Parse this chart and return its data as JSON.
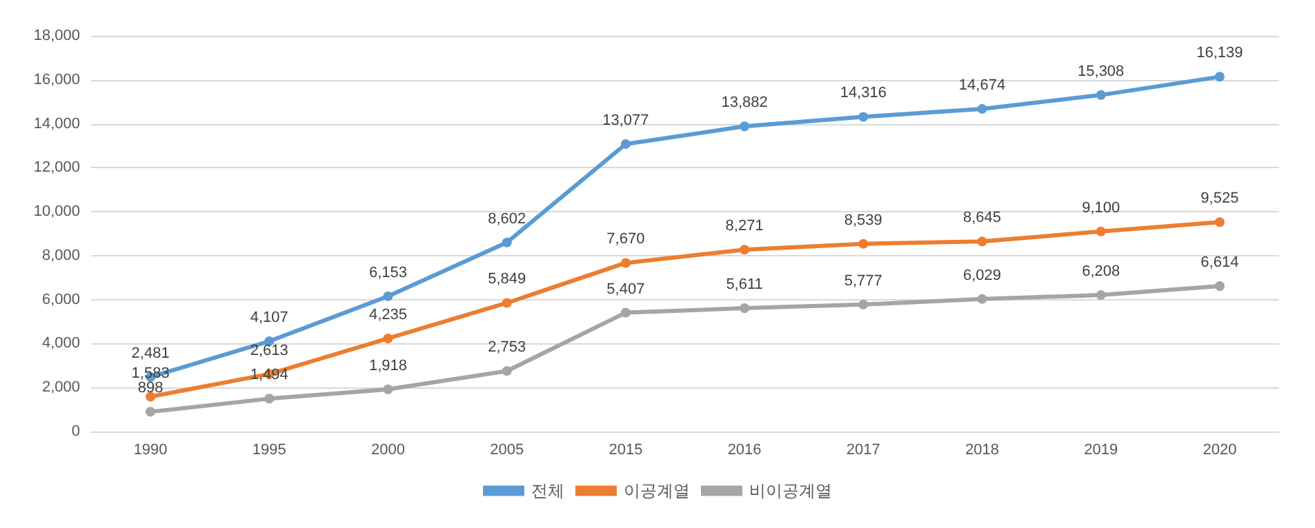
{
  "chart_data": {
    "type": "line",
    "categories": [
      "1990",
      "1995",
      "2000",
      "2005",
      "2015",
      "2016",
      "2017",
      "2018",
      "2019",
      "2020"
    ],
    "series": [
      {
        "name": "전체",
        "color": "#5b9bd5",
        "values": [
          2481,
          4107,
          6153,
          8602,
          13077,
          13882,
          14316,
          14674,
          15308,
          16139
        ],
        "value_labels": [
          "2,481",
          "4,107",
          "6,153",
          "8,602",
          "13,077",
          "13,882",
          "14,316",
          "14,674",
          "15,308",
          "16,139"
        ]
      },
      {
        "name": "이공계열",
        "color": "#ed7d31",
        "values": [
          1583,
          2613,
          4235,
          5849,
          7670,
          8271,
          8539,
          8645,
          9100,
          9525
        ],
        "value_labels": [
          "1,583",
          "2,613",
          "4,235",
          "5,849",
          "7,670",
          "8,271",
          "8,539",
          "8,645",
          "9,100",
          "9,525"
        ]
      },
      {
        "name": "비이공계열",
        "color": "#a5a5a5",
        "values": [
          898,
          1494,
          1918,
          2753,
          5407,
          5611,
          5777,
          6029,
          6208,
          6614
        ],
        "value_labels": [
          "898",
          "1,494",
          "1,918",
          "2,753",
          "5,407",
          "5,611",
          "5,777",
          "6,029",
          "6,208",
          "6,614"
        ]
      }
    ],
    "ylim": [
      0,
      18000
    ],
    "yticks": [
      0,
      {
        "value": 2000,
        "label": "2,000"
      },
      {
        "value": 4000,
        "label": "4,000"
      },
      {
        "value": 6000,
        "label": "6,000"
      },
      {
        "value": 8000,
        "label": "8,000"
      },
      {
        "value": 10000,
        "label": "10,000"
      },
      {
        "value": 12000,
        "label": "12,000"
      },
      {
        "value": 14000,
        "label": "14,000"
      },
      {
        "value": 16000,
        "label": "16,000"
      },
      {
        "value": 18000,
        "label": "18,000"
      }
    ],
    "grid": "y",
    "legend": "bottom",
    "marker": "circle",
    "line_style": "solid"
  }
}
